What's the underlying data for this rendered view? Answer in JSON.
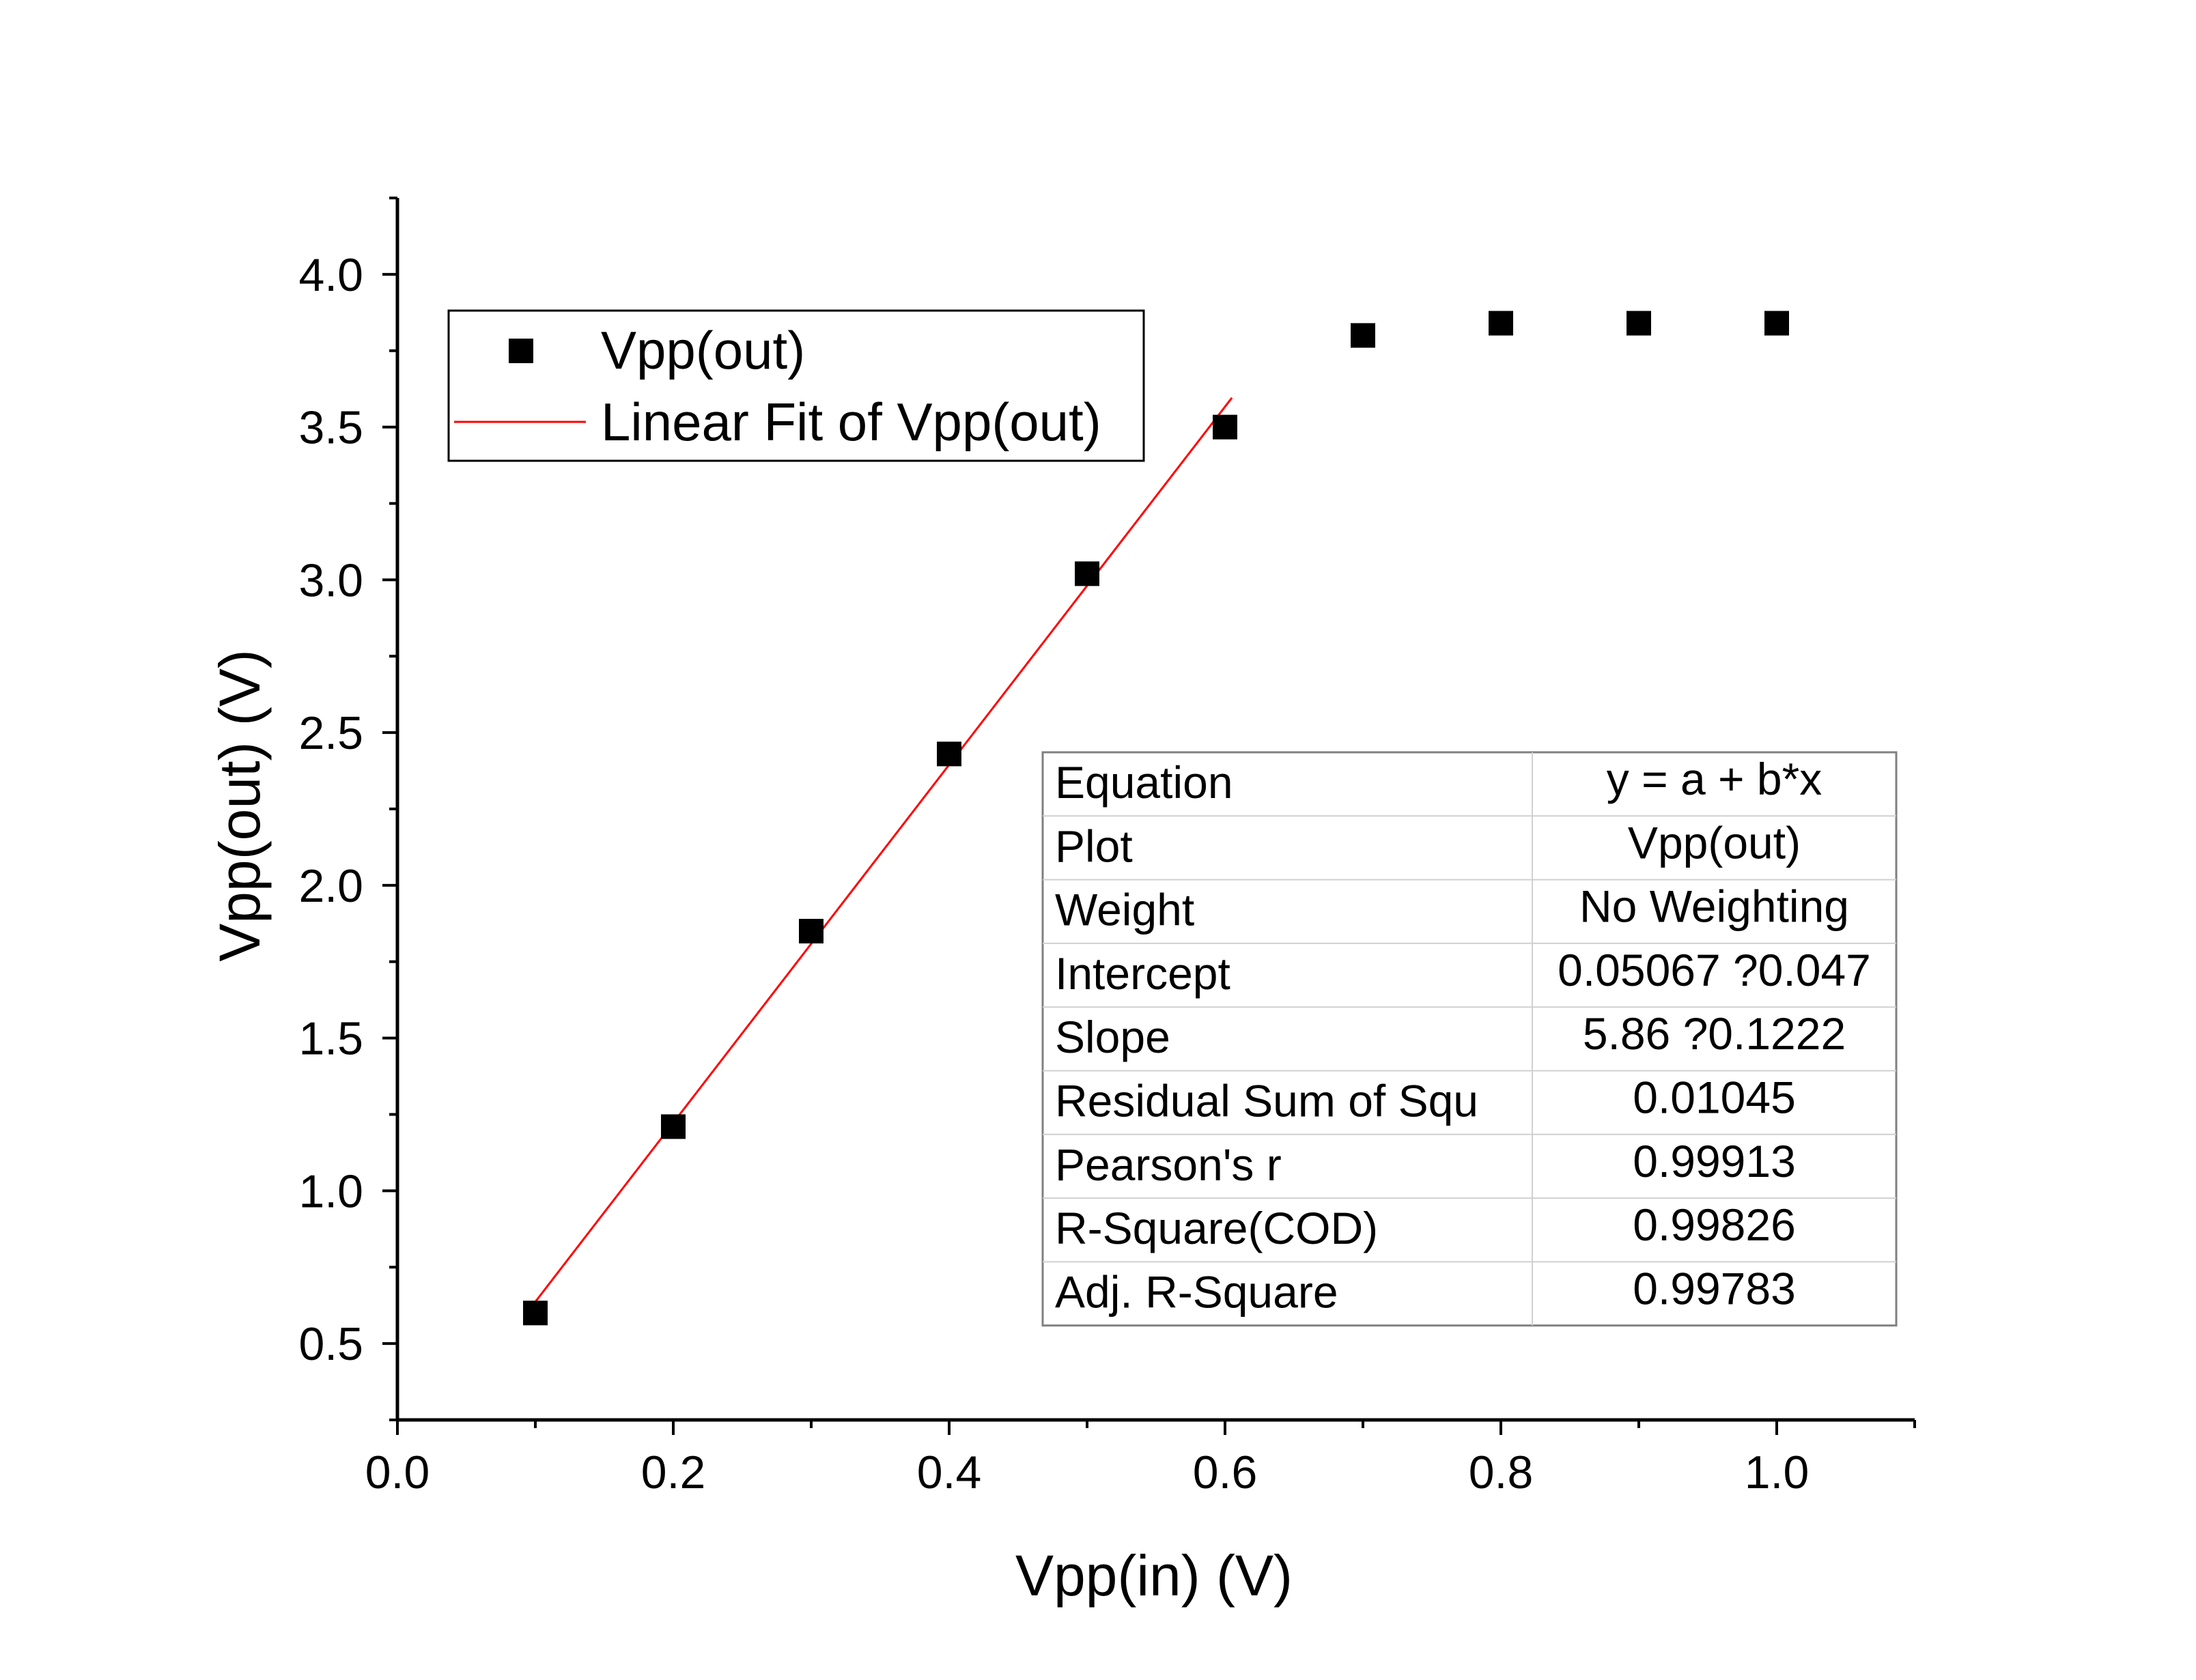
{
  "chart_data": {
    "type": "scatter",
    "xlabel": "Vpp(in) (V)",
    "ylabel": "Vpp(out) (V)",
    "xlim": [
      0.0,
      1.1
    ],
    "ylim": [
      0.25,
      4.25
    ],
    "x_ticks": [
      "0.0",
      "0.2",
      "0.4",
      "0.6",
      "0.8",
      "1.0"
    ],
    "y_ticks": [
      "0.5",
      "1.0",
      "1.5",
      "2.0",
      "2.5",
      "3.0",
      "3.5",
      "4.0"
    ],
    "grid": false,
    "legend_position": "top-left",
    "series": [
      {
        "name": "Vpp(out)",
        "kind": "scatter",
        "marker": "square",
        "color": "#000000",
        "x": [
          0.1,
          0.2,
          0.3,
          0.4,
          0.5,
          0.6,
          0.7,
          0.8,
          0.9,
          1.0
        ],
        "y": [
          0.6,
          1.21,
          1.85,
          2.43,
          3.02,
          3.5,
          3.8,
          3.84,
          3.84,
          3.84
        ]
      },
      {
        "name": "Linear Fit of Vpp(out)",
        "kind": "line",
        "color": "#ff0000",
        "intercept": 0.05067,
        "slope": 5.86,
        "x_range": [
          0.1,
          0.6
        ]
      }
    ],
    "fit_table": {
      "rows": [
        {
          "label": "Equation",
          "value": "y = a + b*x"
        },
        {
          "label": "Plot",
          "value": "Vpp(out)"
        },
        {
          "label": "Weight",
          "value": "No Weighting"
        },
        {
          "label": "Intercept",
          "value": "0.05067 ?0.047"
        },
        {
          "label": "Slope",
          "value": "5.86 ?0.1222"
        },
        {
          "label": "Residual Sum of Squ",
          "value": "0.01045"
        },
        {
          "label": "Pearson's r",
          "value": "0.99913"
        },
        {
          "label": "R-Square(COD)",
          "value": "0.99826"
        },
        {
          "label": "Adj. R-Square",
          "value": "0.99783"
        }
      ]
    }
  }
}
